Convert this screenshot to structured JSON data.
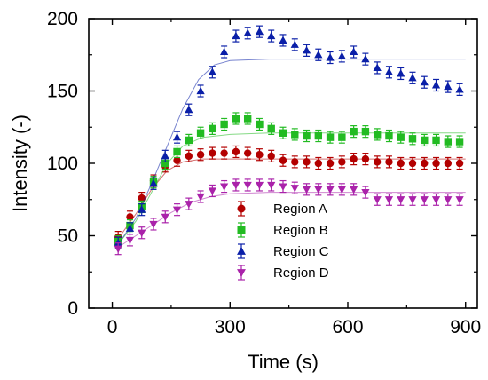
{
  "chart_data": {
    "type": "scatter",
    "xlabel": "Time (s)",
    "ylabel": "Intensity (-)",
    "xlim": [
      -60,
      930
    ],
    "ylim": [
      0,
      200
    ],
    "xticks": [
      0,
      300,
      600,
      900
    ],
    "yticks": [
      0,
      50,
      100,
      150,
      200
    ],
    "legend_position": "lower-right",
    "error_bar": 4,
    "series": [
      {
        "name": "Region A",
        "color": "#b30000",
        "marker": "circle",
        "points": [
          [
            15,
            49
          ],
          [
            45,
            63
          ],
          [
            75,
            76
          ],
          [
            105,
            88
          ],
          [
            135,
            98
          ],
          [
            165,
            102
          ],
          [
            195,
            105
          ],
          [
            225,
            106
          ],
          [
            255,
            107
          ],
          [
            285,
            107
          ],
          [
            315,
            108
          ],
          [
            345,
            107
          ],
          [
            375,
            106
          ],
          [
            405,
            105
          ],
          [
            435,
            102
          ],
          [
            465,
            101
          ],
          [
            495,
            101
          ],
          [
            525,
            100
          ],
          [
            555,
            100
          ],
          [
            585,
            101
          ],
          [
            615,
            103
          ],
          [
            645,
            103
          ],
          [
            675,
            101
          ],
          [
            705,
            101
          ],
          [
            735,
            100
          ],
          [
            765,
            100
          ],
          [
            795,
            100
          ],
          [
            825,
            100
          ],
          [
            855,
            100
          ],
          [
            885,
            100
          ]
        ],
        "fit": [
          [
            15,
            48
          ],
          [
            60,
            65
          ],
          [
            100,
            82
          ],
          [
            140,
            95
          ],
          [
            180,
            101
          ],
          [
            230,
            103
          ],
          [
            300,
            103
          ],
          [
            400,
            103
          ],
          [
            600,
            103
          ],
          [
            900,
            103
          ]
        ]
      },
      {
        "name": "Region B",
        "color": "#22bb22",
        "marker": "square",
        "points": [
          [
            15,
            46
          ],
          [
            45,
            57
          ],
          [
            75,
            70
          ],
          [
            105,
            87
          ],
          [
            135,
            100
          ],
          [
            165,
            108
          ],
          [
            195,
            116
          ],
          [
            225,
            121
          ],
          [
            255,
            124
          ],
          [
            285,
            127
          ],
          [
            315,
            131
          ],
          [
            345,
            131
          ],
          [
            375,
            127
          ],
          [
            405,
            124
          ],
          [
            435,
            121
          ],
          [
            465,
            120
          ],
          [
            495,
            119
          ],
          [
            525,
            119
          ],
          [
            555,
            118
          ],
          [
            585,
            118
          ],
          [
            615,
            122
          ],
          [
            645,
            122
          ],
          [
            675,
            120
          ],
          [
            705,
            119
          ],
          [
            735,
            118
          ],
          [
            765,
            117
          ],
          [
            795,
            116
          ],
          [
            825,
            116
          ],
          [
            855,
            115
          ],
          [
            885,
            115
          ]
        ],
        "fit": [
          [
            15,
            44
          ],
          [
            60,
            60
          ],
          [
            100,
            80
          ],
          [
            140,
            100
          ],
          [
            180,
            112
          ],
          [
            230,
            118
          ],
          [
            300,
            120
          ],
          [
            400,
            121
          ],
          [
            600,
            121
          ],
          [
            900,
            121
          ]
        ]
      },
      {
        "name": "Region C",
        "color": "#0a1fa8",
        "marker": "triangle-up",
        "points": [
          [
            15,
            45
          ],
          [
            45,
            55
          ],
          [
            75,
            68
          ],
          [
            105,
            86
          ],
          [
            135,
            105
          ],
          [
            165,
            118
          ],
          [
            195,
            137
          ],
          [
            225,
            150
          ],
          [
            255,
            163
          ],
          [
            285,
            177
          ],
          [
            315,
            188
          ],
          [
            345,
            190
          ],
          [
            375,
            191
          ],
          [
            405,
            188
          ],
          [
            435,
            185
          ],
          [
            465,
            182
          ],
          [
            495,
            178
          ],
          [
            525,
            175
          ],
          [
            555,
            173
          ],
          [
            585,
            174
          ],
          [
            615,
            177
          ],
          [
            645,
            172
          ],
          [
            675,
            166
          ],
          [
            705,
            163
          ],
          [
            735,
            162
          ],
          [
            765,
            159
          ],
          [
            795,
            156
          ],
          [
            825,
            154
          ],
          [
            855,
            153
          ],
          [
            885,
            151
          ]
        ],
        "fit": [
          [
            15,
            44
          ],
          [
            60,
            62
          ],
          [
            100,
            86
          ],
          [
            140,
            112
          ],
          [
            180,
            138
          ],
          [
            220,
            158
          ],
          [
            260,
            168
          ],
          [
            300,
            171
          ],
          [
            400,
            172
          ],
          [
            600,
            172
          ],
          [
            900,
            172
          ]
        ]
      },
      {
        "name": "Region D",
        "color": "#aa22aa",
        "marker": "triangle-down",
        "points": [
          [
            15,
            41
          ],
          [
            45,
            47
          ],
          [
            75,
            52
          ],
          [
            105,
            58
          ],
          [
            135,
            63
          ],
          [
            165,
            68
          ],
          [
            195,
            72
          ],
          [
            225,
            77
          ],
          [
            255,
            81
          ],
          [
            285,
            84
          ],
          [
            315,
            85
          ],
          [
            345,
            85
          ],
          [
            375,
            85
          ],
          [
            405,
            85
          ],
          [
            435,
            84
          ],
          [
            465,
            83
          ],
          [
            495,
            82
          ],
          [
            525,
            82
          ],
          [
            555,
            82
          ],
          [
            585,
            82
          ],
          [
            615,
            82
          ],
          [
            645,
            80
          ],
          [
            675,
            75
          ],
          [
            705,
            75
          ],
          [
            735,
            75
          ],
          [
            765,
            75
          ],
          [
            795,
            75
          ],
          [
            825,
            75
          ],
          [
            855,
            75
          ],
          [
            885,
            75
          ]
        ],
        "fit": [
          [
            15,
            42
          ],
          [
            60,
            50
          ],
          [
            100,
            57
          ],
          [
            150,
            66
          ],
          [
            200,
            73
          ],
          [
            250,
            77
          ],
          [
            300,
            79
          ],
          [
            400,
            80
          ],
          [
            600,
            80
          ],
          [
            900,
            80
          ]
        ]
      }
    ]
  }
}
